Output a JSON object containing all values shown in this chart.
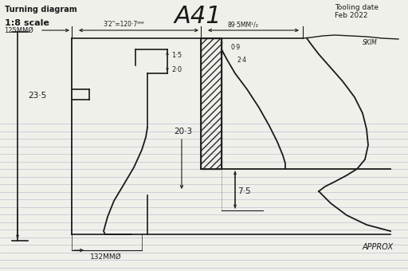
{
  "title": "A41",
  "subtitle_left": "Turning diagram",
  "scale_text": "1:8 scale",
  "tooling_text": "Tooling date\nFeb 2022",
  "approx_text": "APPROX",
  "skim_text": "SKIM",
  "bg_color": "#f0f0eb",
  "line_color": "#1a1a1a",
  "ruled_line_color": "#b8c4cc",
  "dim_125": "125MMØ",
  "dim_320": "3'2\"=120·7ᴹᴹ",
  "dim_895": "89·5MM¹/₂",
  "dim_09": "0·9",
  "dim_24": "2·4",
  "dim_15": "1·5",
  "dim_20": "2·0",
  "dim_235": "23·5",
  "dim_203": "20·3",
  "dim_75": "7·5",
  "dim_132": "132MMØ"
}
